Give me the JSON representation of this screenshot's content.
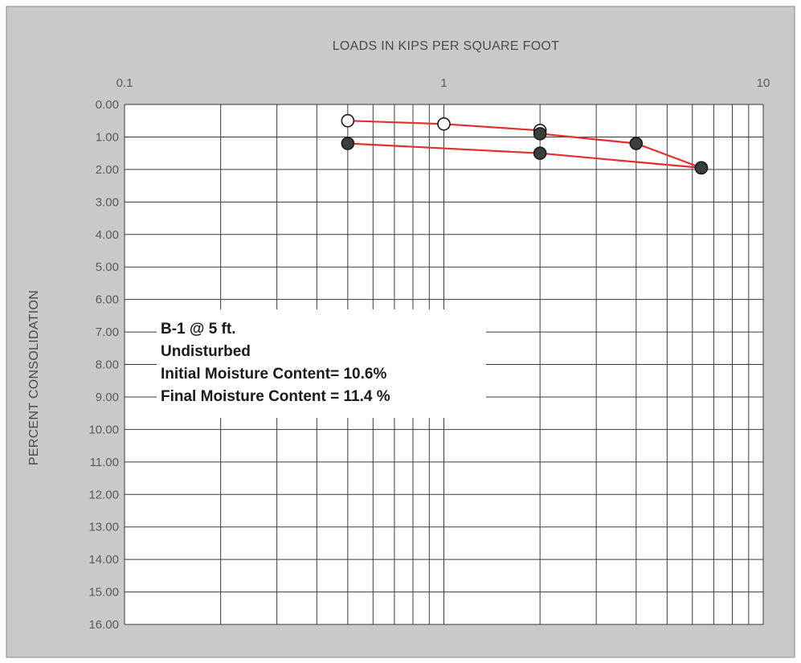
{
  "chart_data": {
    "type": "scatter",
    "title": "",
    "xlabel": "LOADS IN KIPS PER SQUARE FOOT",
    "ylabel": "PERCENT CONSOLIDATION",
    "x_scale": "log",
    "xlim": [
      0.1,
      10
    ],
    "ylim": [
      16,
      0
    ],
    "x_tick_labels": [
      "0.1",
      "1",
      "10"
    ],
    "x_ticks": [
      0.1,
      1,
      10
    ],
    "y_ticks": [
      0,
      1,
      2,
      3,
      4,
      5,
      6,
      7,
      8,
      9,
      10,
      11,
      12,
      13,
      14,
      15,
      16
    ],
    "y_tick_labels": [
      "0.00",
      "1.00",
      "2.00",
      "3.00",
      "4.00",
      "5.00",
      "6.00",
      "7.00",
      "8.00",
      "9.00",
      "10.00",
      "11.00",
      "12.00",
      "13.00",
      "14.00",
      "15.00",
      "16.00"
    ],
    "grid": true,
    "series": [
      {
        "marker": "open-circle",
        "color": "#e03030",
        "x": [
          0.5,
          1,
          2
        ],
        "y": [
          0.5,
          0.6,
          0.8
        ]
      },
      {
        "marker": "filled-circle",
        "color": "#e03030",
        "x": [
          2,
          4,
          6.4
        ],
        "y": [
          0.9,
          1.2,
          1.95
        ]
      },
      {
        "marker": "filled-circle",
        "color": "#e03030",
        "x": [
          6.4,
          2,
          0.5
        ],
        "y": [
          1.95,
          1.5,
          1.2
        ]
      }
    ],
    "annotations": [
      "B-1 @ 5 ft.",
      "Undisturbed",
      "Initial Moisture Content= 10.6%",
      "Final Moisture Content = 11.4 %"
    ]
  },
  "colors": {
    "frame_bg": "#c9c9c9",
    "plot_bg": "#ffffff",
    "grid": "#3a3a3a",
    "line": "#e03030",
    "marker_fill": "#3a3f3a"
  }
}
